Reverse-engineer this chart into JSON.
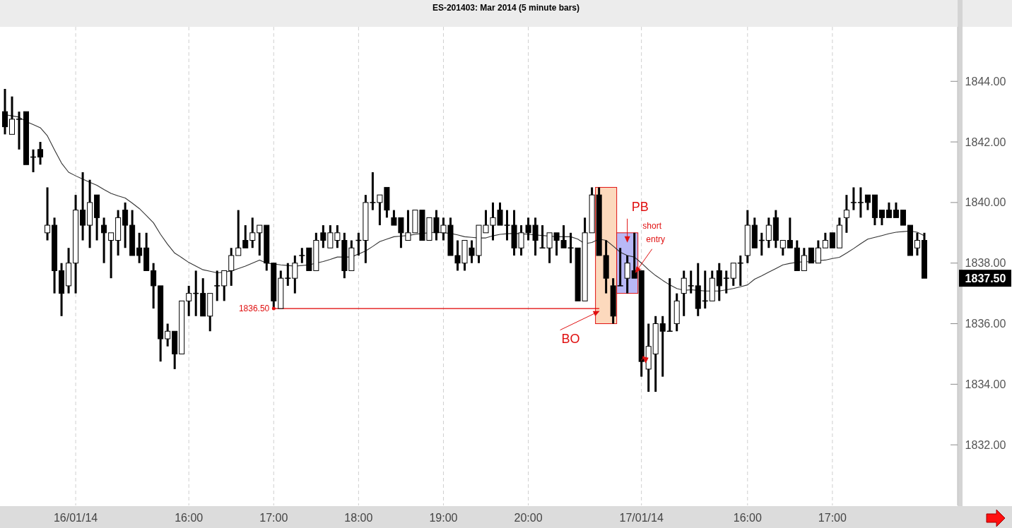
{
  "chart_data": {
    "type": "candlestick",
    "title": "ES-201403:  Mar 2014  (5 minute bars)",
    "categories": [
      null,
      null,
      null,
      null,
      null,
      null,
      null,
      null,
      null,
      null,
      "16/01/14",
      null,
      null,
      null,
      null,
      null,
      null,
      null,
      null,
      null,
      null,
      null,
      null,
      null,
      null,
      null,
      "16:00",
      null,
      null,
      null,
      null,
      null,
      null,
      null,
      null,
      null,
      null,
      null,
      "17:00",
      null,
      null,
      null,
      null,
      null,
      null,
      null,
      null,
      null,
      null,
      null,
      "18:00",
      null,
      null,
      null,
      null,
      null,
      null,
      null,
      null,
      null,
      null,
      null,
      "19:00",
      null,
      null,
      null,
      null,
      null,
      null,
      null,
      null,
      null,
      null,
      null,
      "20:00",
      null,
      null,
      null,
      null,
      null,
      null,
      null,
      null,
      null,
      null,
      null,
      null,
      null,
      null,
      null,
      "17/01/14",
      null,
      null,
      null,
      null,
      null,
      null,
      null,
      null,
      null,
      null,
      null,
      null,
      null,
      null,
      "16:00",
      null,
      null,
      null,
      null,
      null,
      null,
      null,
      null,
      null,
      null,
      null,
      "17:00",
      null,
      null,
      null,
      null,
      null,
      null,
      null,
      null,
      null,
      null,
      null,
      null,
      null
    ],
    "ohlc": [
      [
        1843,
        1843.75,
        1842.25,
        1842.5
      ],
      [
        1842.25,
        1843.5,
        1842.25,
        1842.75
      ],
      [
        1842.75,
        1843,
        1841.75,
        1842.75
      ],
      [
        1843,
        1843,
        1841.25,
        1841.25
      ],
      [
        1841.5,
        1841.75,
        1841,
        1841.5
      ],
      [
        1841.75,
        1842,
        1841.25,
        1841.5
      ],
      [
        1839,
        1840.5,
        1838.75,
        1839.25
      ],
      [
        1839.25,
        1839.5,
        1837,
        1837.75
      ],
      [
        1837.75,
        1838,
        1836.25,
        1837
      ],
      [
        1837.25,
        1838.5,
        1837,
        1838
      ],
      [
        1838,
        1840.25,
        1837,
        1839.75
      ],
      [
        1839.75,
        1841,
        1838.75,
        1839.25
      ],
      [
        1839.25,
        1840.75,
        1838.5,
        1840
      ],
      [
        1840.25,
        1840.25,
        1838.75,
        1839.5
      ],
      [
        1839.25,
        1839.5,
        1838,
        1839
      ],
      [
        1838.75,
        1839,
        1837.5,
        1839
      ],
      [
        1838.75,
        1839.75,
        1838.25,
        1839.5
      ],
      [
        1839.75,
        1840,
        1838.5,
        1839.25
      ],
      [
        1839.25,
        1839.75,
        1838.25,
        1838.25
      ],
      [
        1838.5,
        1839,
        1838,
        1838.25
      ],
      [
        1838.5,
        1839,
        1837.75,
        1837.75
      ],
      [
        1837.75,
        1838,
        1836.5,
        1837.25
      ],
      [
        1837.25,
        1837.25,
        1834.75,
        1835.5
      ],
      [
        1835.5,
        1836,
        1835.25,
        1835.75
      ],
      [
        1835.75,
        1835.75,
        1834.5,
        1835
      ],
      [
        1835,
        1836.75,
        1835,
        1836.75
      ],
      [
        1836.75,
        1837.25,
        1836.25,
        1837
      ],
      [
        1837,
        1837.75,
        1836.25,
        1837
      ],
      [
        1837,
        1837.5,
        1836.25,
        1836.25
      ],
      [
        1836.25,
        1837,
        1835.75,
        1837
      ],
      [
        1837.25,
        1837.75,
        1836.75,
        1837.25
      ],
      [
        1837.25,
        1837.75,
        1836.75,
        1837.75
      ],
      [
        1837.75,
        1838.5,
        1837.25,
        1838.25
      ],
      [
        1838.25,
        1839.75,
        1838.25,
        1838.5
      ],
      [
        1838.75,
        1839.25,
        1838.5,
        1838.5
      ],
      [
        1838.75,
        1839.5,
        1838.5,
        1839
      ],
      [
        1839,
        1839.25,
        1838.25,
        1839.25
      ],
      [
        1839.25,
        1839.25,
        1837.75,
        1838
      ],
      [
        1838,
        1838,
        1836.5,
        1836.75
      ],
      [
        1836.5,
        1837.75,
        1836.5,
        1837.5
      ],
      [
        1837.5,
        1838,
        1837.25,
        1837.5
      ],
      [
        1837.5,
        1838.25,
        1837,
        1838
      ],
      [
        1838.25,
        1838.5,
        1838,
        1838.25
      ],
      [
        1838.5,
        1838.5,
        1837.75,
        1837.75
      ],
      [
        1837.75,
        1839,
        1837.75,
        1838.75
      ],
      [
        1839,
        1839.25,
        1838.5,
        1838.75
      ],
      [
        1838.5,
        1839.25,
        1838.5,
        1839
      ],
      [
        1838.75,
        1839.25,
        1838.5,
        1839
      ],
      [
        1838.75,
        1839,
        1837.5,
        1837.75
      ],
      [
        1837.75,
        1838.75,
        1837.75,
        1838.5
      ],
      [
        1838.75,
        1839,
        1838.25,
        1838.75
      ],
      [
        1838.75,
        1840.25,
        1838,
        1840
      ],
      [
        1840,
        1841,
        1839.75,
        1840
      ],
      [
        1840,
        1840.25,
        1839.25,
        1840.25
      ],
      [
        1840.5,
        1840.5,
        1839.5,
        1839.75
      ],
      [
        1839.5,
        1839.75,
        1839.25,
        1839.25
      ],
      [
        1839.5,
        1839.5,
        1838.5,
        1839
      ],
      [
        1838.75,
        1839.75,
        1838.75,
        1839
      ],
      [
        1839,
        1839.75,
        1839,
        1839.75
      ],
      [
        1839.75,
        1839.75,
        1838.75,
        1838.75
      ],
      [
        1838.75,
        1839.5,
        1838.75,
        1839.5
      ],
      [
        1839.5,
        1839.75,
        1838.75,
        1839
      ],
      [
        1839,
        1839.5,
        1838.75,
        1839.25
      ],
      [
        1839.25,
        1839.5,
        1838.25,
        1838.25
      ],
      [
        1838.25,
        1838.75,
        1837.75,
        1838
      ],
      [
        1838,
        1838.75,
        1837.75,
        1838.75
      ],
      [
        1838.5,
        1838.75,
        1838,
        1838.25
      ],
      [
        1838.25,
        1839.25,
        1838,
        1839.25
      ],
      [
        1839,
        1839.75,
        1839,
        1839.25
      ],
      [
        1839.25,
        1840,
        1838.75,
        1839.5
      ],
      [
        1839.75,
        1840,
        1839.25,
        1839.25
      ],
      [
        1839.25,
        1839.75,
        1838.75,
        1839.25
      ],
      [
        1839.25,
        1839.75,
        1838.25,
        1838.5
      ],
      [
        1838.5,
        1839.25,
        1838.25,
        1839
      ],
      [
        1839.25,
        1839.5,
        1838.75,
        1839
      ],
      [
        1839.25,
        1839.5,
        1838.25,
        1838.75
      ],
      [
        1838.5,
        1839.25,
        1838.5,
        1838.5
      ],
      [
        1838.5,
        1839,
        1838,
        1839
      ],
      [
        1839,
        1839,
        1838.25,
        1838.75
      ],
      [
        1838.75,
        1839.25,
        1838.5,
        1838.5
      ],
      [
        1838.5,
        1839,
        1838,
        1838.5
      ],
      [
        1838.5,
        1838.5,
        1836.75,
        1836.75
      ],
      [
        1836.75,
        1839.5,
        1836.75,
        1839
      ],
      [
        1839,
        1840.5,
        1839,
        1840.25
      ],
      [
        1840.25,
        1840.5,
        1838.25,
        1838.25
      ],
      [
        1838.25,
        1838.75,
        1837,
        1837.5
      ],
      [
        1837.25,
        1837.5,
        1836,
        1836.25
      ],
      [
        1837.25,
        1838.5,
        1837.25,
        1837.25
      ],
      [
        1837.5,
        1838.25,
        1837,
        1838
      ],
      [
        1837.75,
        1839,
        1837.5,
        1837.5
      ],
      [
        1837.75,
        1837.75,
        1834.25,
        1834.75
      ],
      [
        1834.5,
        1836,
        1833.75,
        1835.25
      ],
      [
        1835,
        1836.25,
        1833.75,
        1836
      ],
      [
        1836,
        1836.25,
        1834.25,
        1835.75
      ],
      [
        1835.75,
        1837.5,
        1835.75,
        1835.75
      ],
      [
        1836,
        1837,
        1835.75,
        1836.75
      ],
      [
        1837,
        1837.75,
        1836.25,
        1837.5
      ],
      [
        1837.25,
        1837.75,
        1837,
        1837.25
      ],
      [
        1837.25,
        1838,
        1836.25,
        1836.5
      ],
      [
        1836.75,
        1837.75,
        1836.5,
        1836.75
      ],
      [
        1836.75,
        1837.75,
        1836.75,
        1837.5
      ],
      [
        1837.75,
        1838,
        1836.75,
        1837.25
      ],
      [
        1837.5,
        1837.75,
        1837,
        1837.5
      ],
      [
        1837.5,
        1838,
        1837.25,
        1838
      ],
      [
        1838,
        1838.25,
        1837.25,
        1838
      ],
      [
        1838.25,
        1839.75,
        1838,
        1839.25
      ],
      [
        1839.25,
        1839.5,
        1838.5,
        1838.5
      ],
      [
        1838.75,
        1839,
        1838.25,
        1838.75
      ],
      [
        1838.75,
        1839.5,
        1838.5,
        1839.25
      ],
      [
        1839.5,
        1839.75,
        1838.5,
        1838.75
      ],
      [
        1838.5,
        1838.75,
        1838.25,
        1838.75
      ],
      [
        1838.75,
        1839.5,
        1838.5,
        1838.5
      ],
      [
        1838.5,
        1838.75,
        1837.75,
        1837.75
      ],
      [
        1837.75,
        1838.5,
        1837.75,
        1838.25
      ],
      [
        1838.5,
        1838.5,
        1838,
        1838
      ],
      [
        1838,
        1838.75,
        1838,
        1838.5
      ],
      [
        1838.5,
        1839,
        1838.5,
        1838.75
      ],
      [
        1839,
        1839,
        1838.5,
        1838.5
      ],
      [
        1838.5,
        1839.5,
        1838.5,
        1839.25
      ],
      [
        1839.5,
        1840.25,
        1839,
        1839.75
      ],
      [
        1840,
        1840.5,
        1839.75,
        1840
      ],
      [
        1840,
        1840.5,
        1839.5,
        1840
      ],
      [
        1840.25,
        1840.25,
        1839.75,
        1840
      ],
      [
        1840.25,
        1840.25,
        1839.25,
        1839.5
      ],
      [
        1839.75,
        1839.75,
        1839.25,
        1839.5
      ],
      [
        1839.75,
        1840,
        1839.5,
        1839.5
      ],
      [
        1839.75,
        1840,
        1839.5,
        1839.5
      ],
      [
        1839.75,
        1839.75,
        1839.25,
        1839.25
      ],
      [
        1839.25,
        1839.25,
        1838.25,
        1838.25
      ],
      [
        1838.5,
        1839,
        1838.25,
        1838.75
      ],
      [
        1838.75,
        1839,
        1837.5,
        1837.5
      ]
    ],
    "series": [
      {
        "type": "line",
        "color": "#333333",
        "values": [
          1842.9,
          1842.86,
          1842.82,
          1842.67,
          1842.57,
          1842.47,
          1842.2,
          1841.74,
          1841.3,
          1841.0,
          1840.88,
          1840.77,
          1840.67,
          1840.57,
          1840.43,
          1840.3,
          1840.22,
          1840.15,
          1839.98,
          1839.8,
          1839.57,
          1839.33,
          1838.95,
          1838.62,
          1838.33,
          1838.18,
          1838.02,
          1837.9,
          1837.78,
          1837.73,
          1837.68,
          1837.7,
          1837.74,
          1837.82,
          1837.9,
          1838.0,
          1838.1,
          1838.0,
          1837.97,
          1837.94,
          1837.92,
          1837.9,
          1837.92,
          1837.94,
          1838.0,
          1838.05,
          1838.12,
          1838.2,
          1838.2,
          1838.2,
          1838.3,
          1838.4,
          1838.55,
          1838.71,
          1838.79,
          1838.87,
          1838.89,
          1838.91,
          1838.95,
          1838.98,
          1839.0,
          1839.02,
          1839.0,
          1838.98,
          1838.93,
          1838.87,
          1838.85,
          1838.83,
          1838.83,
          1838.9,
          1838.95,
          1838.97,
          1838.98,
          1838.97,
          1838.95,
          1838.93,
          1838.91,
          1838.89,
          1838.87,
          1838.87,
          1838.87,
          1838.79,
          1838.64,
          1838.68,
          1838.79,
          1838.75,
          1838.56,
          1838.36,
          1838.25,
          1838.2,
          1838.0,
          1837.78,
          1837.59,
          1837.43,
          1837.28,
          1837.16,
          1837.1,
          1837.12,
          1837.1,
          1837.08,
          1837.08,
          1837.08,
          1837.12,
          1837.16,
          1837.22,
          1837.28,
          1837.47,
          1837.58,
          1837.7,
          1837.82,
          1837.94,
          1837.99,
          1838.03,
          1838.04,
          1838.05,
          1838.08,
          1838.1,
          1838.15,
          1838.19,
          1838.33,
          1838.48,
          1838.64,
          1838.79,
          1838.85,
          1838.91,
          1838.97,
          1839.02,
          1839.04,
          1839.06,
          1839.02,
          1838.9
        ]
      },
      {
        "type": "line",
        "color": "#e00000",
        "values": [
          null,
          null,
          null,
          null,
          null,
          null,
          null,
          null,
          null,
          null,
          null,
          null,
          null,
          null,
          null,
          null,
          null,
          null,
          null,
          null,
          null,
          null,
          null,
          null,
          null,
          null,
          null,
          null,
          null,
          null,
          null,
          null,
          null,
          null,
          null,
          null,
          null,
          null,
          1836.5,
          null,
          1836.5,
          1836.5,
          1836.5,
          1836.5,
          1836.5,
          1836.5,
          1836.5,
          1836.5,
          1836.5,
          1836.5,
          1836.5,
          1836.5,
          1836.5,
          1836.5,
          1836.5,
          1836.5,
          1836.5,
          1836.5,
          1836.5,
          1836.5,
          1836.5,
          1836.5,
          1836.5,
          1836.5,
          1836.5,
          1836.5,
          1836.5,
          1836.5,
          1836.5,
          1836.5,
          1836.5,
          1836.5,
          1836.5,
          1836.5,
          1836.5,
          1836.5,
          1836.5,
          1836.5,
          1836.5,
          1836.5,
          1836.5,
          1836.5,
          1836.5,
          1836.5,
          1836.5,
          null,
          null,
          null,
          null,
          null,
          null,
          null,
          null,
          null,
          null,
          null,
          null,
          null,
          null,
          null,
          null,
          null,
          null,
          null,
          null,
          null,
          null,
          null,
          null,
          null,
          null,
          null,
          null,
          null,
          null,
          null,
          null,
          null,
          null,
          null,
          null,
          null,
          null,
          null,
          null,
          null,
          null,
          null,
          null,
          null,
          null
        ]
      }
    ],
    "ylim": [
      1830,
      1845.8
    ],
    "yticks": [
      {
        "value": 1832,
        "label": "1832.00"
      },
      {
        "value": 1834,
        "label": "1834.00"
      },
      {
        "value": 1836,
        "label": "1836.00"
      },
      {
        "value": 1838,
        "label": "1838.00"
      },
      {
        "value": 1840,
        "label": "1840.00"
      },
      {
        "value": 1842,
        "label": "1842.00"
      },
      {
        "value": 1844,
        "label": "1844.00"
      }
    ],
    "grid": "x",
    "annotations": [
      "1836.50",
      "BO",
      "PB",
      "short entry",
      "1837.50"
    ]
  }
}
